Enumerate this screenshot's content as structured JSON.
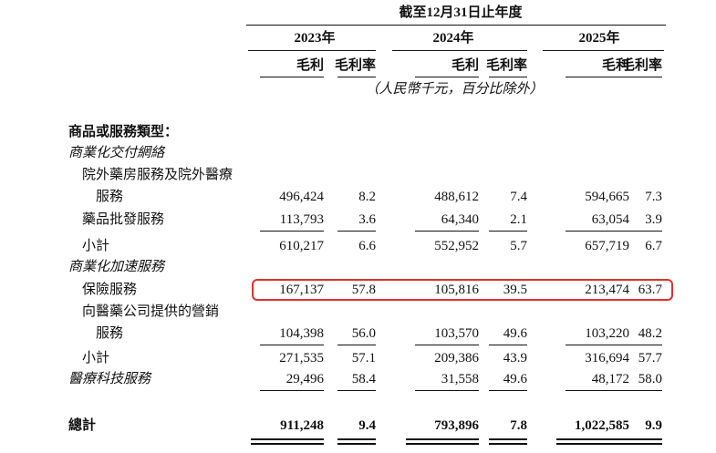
{
  "header": {
    "period": "截至12月31日止年度",
    "years": [
      "2023年",
      "2024年",
      "2025年"
    ],
    "columns": [
      "毛利",
      "毛利率",
      "毛利",
      "毛利率",
      "毛利",
      "毛利率"
    ],
    "unit_note": "（人民幣千元，百分比除外）"
  },
  "table": {
    "rows": [
      {
        "label": "商品或服務類型："
      },
      {
        "label": "商業化交付網絡"
      },
      {
        "label": "院外藥房服務及院外醫療"
      },
      {
        "label": "服務",
        "values": [
          "496,424",
          "8.2",
          "488,612",
          "7.4",
          "594,665",
          "7.3"
        ]
      },
      {
        "label": "藥品批發服務",
        "values": [
          "113,793",
          "3.6",
          "64,340",
          "2.1",
          "63,054",
          "3.9"
        ]
      },
      {
        "label": "小計",
        "values": [
          "610,217",
          "6.6",
          "552,952",
          "5.7",
          "657,719",
          "6.7"
        ]
      },
      {
        "label": "商業化加速服務"
      },
      {
        "label": "保險服務",
        "values": [
          "167,137",
          "57.8",
          "105,816",
          "39.5",
          "213,474",
          "63.7"
        ]
      },
      {
        "label": "向醫藥公司提供的營銷"
      },
      {
        "label": "服務",
        "values": [
          "104,398",
          "56.0",
          "103,570",
          "49.6",
          "103,220",
          "48.2"
        ]
      },
      {
        "label": "小計",
        "values": [
          "271,535",
          "57.1",
          "209,386",
          "43.9",
          "316,694",
          "57.7"
        ]
      },
      {
        "label": "醫療科技服務",
        "values": [
          "29,496",
          "58.4",
          "31,558",
          "49.6",
          "48,172",
          "58.0"
        ]
      },
      {
        "label": "總計",
        "values": [
          "911,248",
          "9.4",
          "793,896",
          "7.8",
          "1,022,585",
          "9.9"
        ]
      }
    ]
  }
}
